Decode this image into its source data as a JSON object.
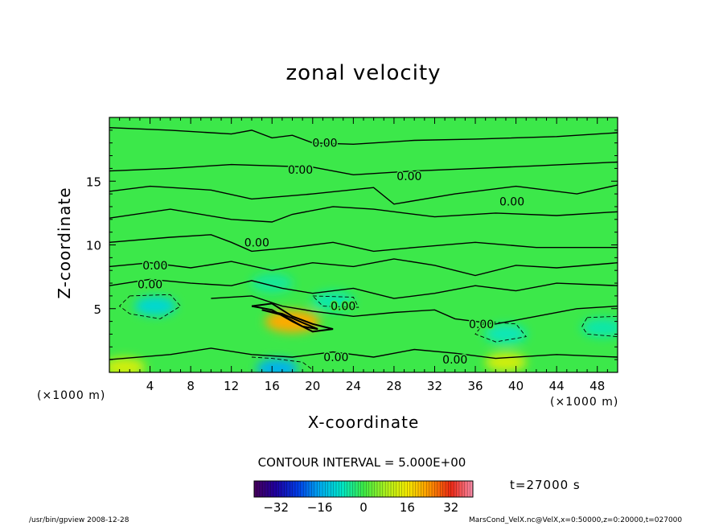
{
  "chart_data": {
    "type": "heatmap",
    "title": "zonal velocity",
    "xlabel": "X-coordinate",
    "ylabel": "Z-coordinate",
    "x_unit": "(×1000 m)",
    "y_unit": "(×1000 m)",
    "xlim": [
      0,
      50
    ],
    "ylim": [
      0,
      20
    ],
    "x_ticks": [
      4,
      8,
      12,
      16,
      20,
      24,
      28,
      32,
      36,
      40,
      44,
      48
    ],
    "y_ticks": [
      5,
      10,
      15
    ],
    "contour_label": "0.00",
    "contour_interval_text": "CONTOUR INTERVAL = 5.000E+00",
    "time_text": "t=27000 s",
    "colorbar": {
      "range": [
        -40,
        40
      ],
      "ticks": [
        -32,
        -16,
        0,
        16,
        32
      ]
    },
    "grid": false,
    "features": [
      {
        "x": 18,
        "z": 4.0,
        "value": 22
      },
      {
        "x": 4.5,
        "z": 5.2,
        "value": -10
      },
      {
        "x": 16.5,
        "z": 0.3,
        "value": -15
      },
      {
        "x": 39.0,
        "z": 0.8,
        "value": 12
      },
      {
        "x": 39.0,
        "z": 3.0,
        "value": -7
      },
      {
        "x": 48.5,
        "z": 3.5,
        "value": -6
      },
      {
        "x": 1.5,
        "z": 0.4,
        "value": 12
      },
      {
        "x": 22.0,
        "z": 5.6,
        "value": -6
      },
      {
        "x": 16.0,
        "z": 7.0,
        "value": -5
      }
    ]
  },
  "colors": {
    "background": "#ffffff",
    "field_base": "#3ce84a"
  },
  "footer": {
    "left": "/usr/bin/gpview  2008-12-28",
    "right": "MarsCond_VelX.nc@VelX,x=0:50000,z=0:20000,t=027000"
  }
}
